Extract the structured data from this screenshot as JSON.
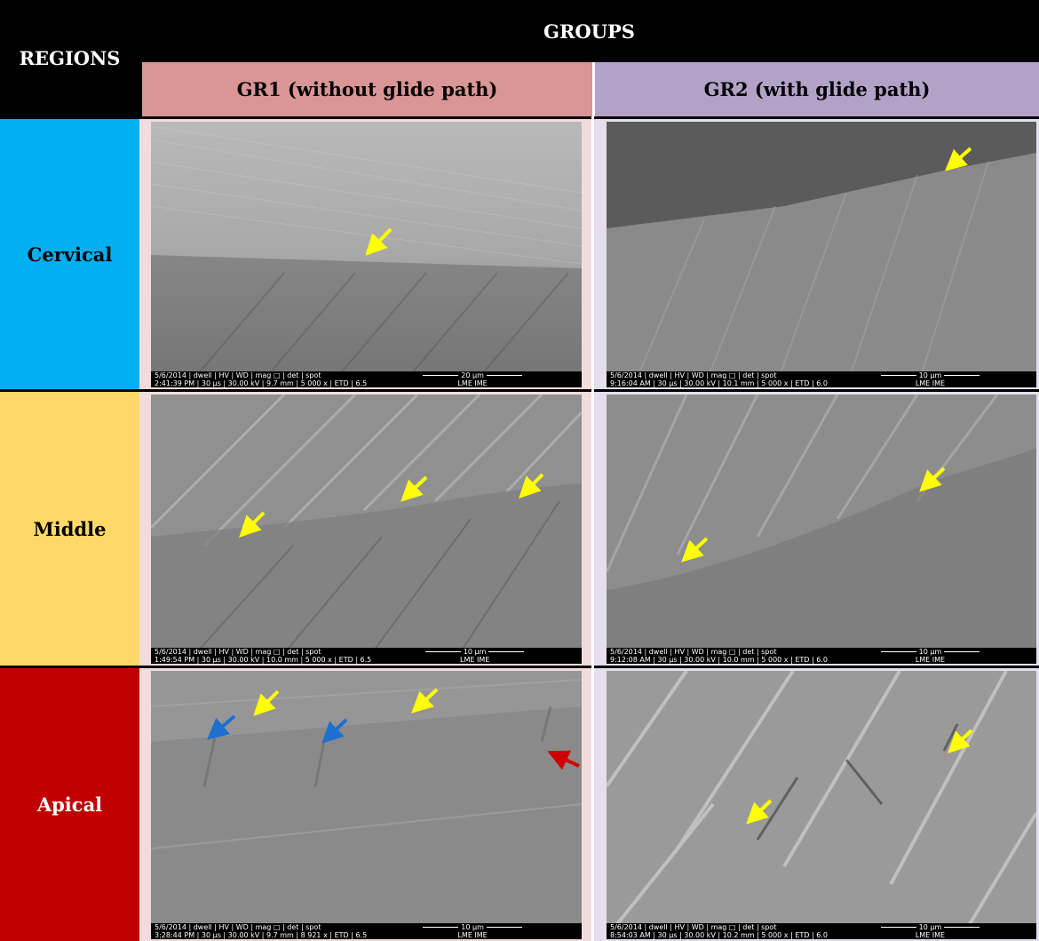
{
  "header": {
    "regions_label": "REGIONS",
    "groups_label": "GROUPS",
    "group1_label": "GR1 (without glide path)",
    "group2_label": "GR2 (with glide path)"
  },
  "rows": [
    {
      "label": "Cervical"
    },
    {
      "label": "Middle"
    },
    {
      "label": "Apical"
    }
  ],
  "images": {
    "cervical_gr1": {
      "meta1": "5/6/2014 | dwell | HV | WD | mag □ | det | spot",
      "meta2": "2:41:39 PM | 30 µs | 30.00 kV | 9.7 mm | 5 000 x | ETD | 6.5",
      "scale": "20 µm",
      "lab": "LME IME"
    },
    "cervical_gr2": {
      "meta1": "5/6/2014 | dwell | HV | WD | mag □ | det | spot",
      "meta2": "9:16:04 AM | 30 µs | 30.00 kV | 10.1 mm | 5 000 x | ETD | 6.0",
      "scale": "10 µm",
      "lab": "LME IME"
    },
    "middle_gr1": {
      "meta1": "5/6/2014 | dwell | HV | WD | mag □ | det | spot",
      "meta2": "1:49:54 PM | 30 µs | 30.00 kV | 10.0 mm | 5 000 x | ETD | 6.5",
      "scale": "10 µm",
      "lab": "LME IME"
    },
    "middle_gr2": {
      "meta1": "5/6/2014 | dwell | HV | WD | mag □ | det | spot",
      "meta2": "9:12:08 AM | 30 µs | 30.00 kV | 10.0 mm | 5 000 x | ETD | 6.0",
      "scale": "10 µm",
      "lab": "LME IME"
    },
    "apical_gr1": {
      "meta1": "5/6/2014 | dwell | HV | WD | mag □ | det | spot",
      "meta2": "3:28:44 PM | 30 µs | 30.00 kV | 9.7 mm | 8 921 x | ETD | 6.5",
      "scale": "10 µm",
      "lab": "LME IME"
    },
    "apical_gr2": {
      "meta1": "5/6/2014 | dwell | HV | WD | mag □ | det | spot",
      "meta2": "8:54:03 AM | 30 µs | 30.00 kV | 10.2 mm | 5 000 x | ETD | 6.0",
      "scale": "10 µm",
      "lab": "LME IME"
    }
  },
  "colors": {
    "arrow_yellow": "#ffff00",
    "arrow_blue": "#1f6fd1",
    "arrow_red": "#d00000"
  }
}
